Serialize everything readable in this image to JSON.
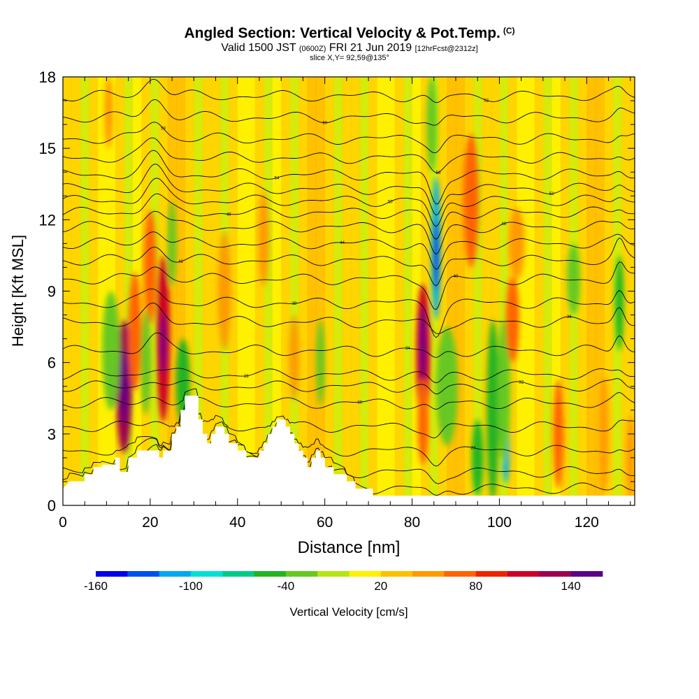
{
  "title": {
    "main": "Angled Section: Vertical Velocity & Pot.Temp.",
    "main_tag": "(C)",
    "valid_a": "Valid 1500 JST",
    "valid_b": "(0600Z)",
    "valid_c": "FRI 21 Jun 2019",
    "valid_d": "[12hrFcst@2312z]",
    "slice": "slice X,Y= 92,59@135°"
  },
  "chart_data": {
    "type": "heatmap",
    "xlabel": "Distance [nm]",
    "ylabel": "Height [Kft MSL]",
    "xlim": [
      0,
      131
    ],
    "ylim": [
      0,
      18
    ],
    "x_ticks": [
      0,
      20,
      40,
      60,
      80,
      100,
      120
    ],
    "y_ticks": [
      0,
      3,
      6,
      9,
      12,
      15,
      18
    ],
    "colorbar": {
      "label": "Vertical Velocity [cm/s]",
      "range": [
        -160,
        160
      ],
      "tick_labels": [
        -160,
        -100,
        -40,
        20,
        80,
        140
      ],
      "colors": [
        "#0000ee",
        "#0050ee",
        "#00a8f0",
        "#00e0d8",
        "#00cc88",
        "#22b422",
        "#66c822",
        "#b4e614",
        "#fff000",
        "#ffc000",
        "#ff9a00",
        "#ff6400",
        "#ee2400",
        "#cc0028",
        "#9c0050",
        "#5c0088"
      ]
    },
    "terrain_kft": [
      [
        0,
        0.7
      ],
      [
        1.5,
        1.0
      ],
      [
        5,
        1.0
      ],
      [
        5,
        1.3
      ],
      [
        7,
        1.3
      ],
      [
        7,
        1.6
      ],
      [
        9,
        1.6
      ],
      [
        9,
        1.7
      ],
      [
        12,
        1.7
      ],
      [
        12,
        2.0
      ],
      [
        13,
        2.0
      ],
      [
        13,
        1.4
      ],
      [
        15,
        1.4
      ],
      [
        15,
        2.0
      ],
      [
        17,
        2.0
      ],
      [
        17,
        2.3
      ],
      [
        19,
        2.3
      ],
      [
        19,
        2.3
      ],
      [
        22,
        2.3
      ],
      [
        22,
        2.0
      ],
      [
        23,
        2.0
      ],
      [
        23,
        2.3
      ],
      [
        25,
        2.3
      ],
      [
        25,
        3.0
      ],
      [
        26,
        3.0
      ],
      [
        26,
        3.3
      ],
      [
        27,
        3.3
      ],
      [
        27,
        4.0
      ],
      [
        28,
        4.0
      ],
      [
        28,
        4.6
      ],
      [
        31,
        4.6
      ],
      [
        31,
        3.6
      ],
      [
        32,
        3.6
      ],
      [
        32,
        3.0
      ],
      [
        33,
        3.0
      ],
      [
        33,
        2.6
      ],
      [
        34,
        2.6
      ],
      [
        34,
        3.0
      ],
      [
        35,
        3.0
      ],
      [
        35,
        3.3
      ],
      [
        37,
        3.3
      ],
      [
        37,
        3.0
      ],
      [
        38,
        3.0
      ],
      [
        38,
        2.6
      ],
      [
        40,
        2.6
      ],
      [
        40,
        2.3
      ],
      [
        42,
        2.3
      ],
      [
        42,
        2.0
      ],
      [
        45,
        2.0
      ],
      [
        45,
        2.3
      ],
      [
        46,
        2.3
      ],
      [
        46,
        2.6
      ],
      [
        47,
        2.6
      ],
      [
        47,
        3.0
      ],
      [
        48,
        3.0
      ],
      [
        48,
        3.3
      ],
      [
        49,
        3.3
      ],
      [
        49,
        3.6
      ],
      [
        51,
        3.6
      ],
      [
        51,
        3.3
      ],
      [
        52,
        3.3
      ],
      [
        52,
        3.0
      ],
      [
        53,
        3.0
      ],
      [
        53,
        2.6
      ],
      [
        54,
        2.6
      ],
      [
        54,
        2.3
      ],
      [
        55,
        2.3
      ],
      [
        55,
        2.0
      ],
      [
        56,
        2.0
      ],
      [
        56,
        1.6
      ],
      [
        57,
        1.6
      ],
      [
        57,
        2.0
      ],
      [
        58,
        2.0
      ],
      [
        58,
        2.3
      ],
      [
        59,
        2.3
      ],
      [
        59,
        2.0
      ],
      [
        60,
        2.0
      ],
      [
        60,
        1.6
      ],
      [
        62,
        1.6
      ],
      [
        62,
        1.3
      ],
      [
        65,
        1.3
      ],
      [
        65,
        1.0
      ],
      [
        67,
        1.0
      ],
      [
        67,
        0.7
      ],
      [
        71,
        0.7
      ],
      [
        71,
        0.4
      ],
      [
        131,
        0.4
      ]
    ],
    "velocity_cells": [
      {
        "x": 14,
        "y": 5.0,
        "rx": 1.8,
        "ry": 2.8,
        "v": 120
      },
      {
        "x": 14,
        "y": 5.0,
        "rx": 0.8,
        "ry": 1.6,
        "v": 150
      },
      {
        "x": 16.5,
        "y": 7.3,
        "rx": 1.5,
        "ry": 2.5,
        "v": 60
      },
      {
        "x": 23,
        "y": 7.0,
        "rx": 1.5,
        "ry": 3.5,
        "v": 110
      },
      {
        "x": 23,
        "y": 6.8,
        "rx": 0.6,
        "ry": 1.3,
        "v": 150
      },
      {
        "x": 20,
        "y": 10.0,
        "rx": 1.4,
        "ry": 2.4,
        "v": 60
      },
      {
        "x": 11,
        "y": 6.5,
        "rx": 2.0,
        "ry": 2.5,
        "v": -40
      },
      {
        "x": 19,
        "y": 6.0,
        "rx": 1.2,
        "ry": 2.2,
        "v": -40
      },
      {
        "x": 27.5,
        "y": 5.2,
        "rx": 1.6,
        "ry": 1.8,
        "v": -60
      },
      {
        "x": 25,
        "y": 11.0,
        "rx": 1.0,
        "ry": 1.8,
        "v": -40
      },
      {
        "x": 10.5,
        "y": 16.5,
        "rx": 1.0,
        "ry": 1.5,
        "v": 40
      },
      {
        "x": 53,
        "y": 6.2,
        "rx": 1.2,
        "ry": 1.8,
        "v": 40
      },
      {
        "x": 59,
        "y": 6.0,
        "rx": 1.0,
        "ry": 1.8,
        "v": -40
      },
      {
        "x": 37,
        "y": 9.0,
        "rx": 1.5,
        "ry": 2.5,
        "v": 40
      },
      {
        "x": 46,
        "y": 11.2,
        "rx": 1.2,
        "ry": 2.0,
        "v": 40
      },
      {
        "x": 82.5,
        "y": 6.3,
        "rx": 1.6,
        "ry": 3.0,
        "v": 110
      },
      {
        "x": 82.5,
        "y": 6.8,
        "rx": 0.7,
        "ry": 1.6,
        "v": 150
      },
      {
        "x": 82.5,
        "y": 3.5,
        "rx": 1.2,
        "ry": 1.8,
        "v": 60
      },
      {
        "x": 85.5,
        "y": 10.8,
        "rx": 1.0,
        "ry": 3.0,
        "v": -120
      },
      {
        "x": 85.5,
        "y": 10.5,
        "rx": 0.5,
        "ry": 1.5,
        "v": -160
      },
      {
        "x": 84.5,
        "y": 16.0,
        "rx": 1.2,
        "ry": 2.0,
        "v": -40
      },
      {
        "x": 88,
        "y": 5.0,
        "rx": 2.5,
        "ry": 2.5,
        "v": -40
      },
      {
        "x": 93.5,
        "y": 12.8,
        "rx": 1.8,
        "ry": 2.8,
        "v": 60
      },
      {
        "x": 98.5,
        "y": 4.0,
        "rx": 1.4,
        "ry": 3.8,
        "v": -60
      },
      {
        "x": 95,
        "y": 2.0,
        "rx": 1.3,
        "ry": 1.6,
        "v": -60
      },
      {
        "x": 101.5,
        "y": 2.6,
        "rx": 0.8,
        "ry": 1.7,
        "v": -120
      },
      {
        "x": 101,
        "y": 4.8,
        "rx": 1.5,
        "ry": 3.0,
        "v": -40
      },
      {
        "x": 103,
        "y": 7.8,
        "rx": 1.5,
        "ry": 1.8,
        "v": 60
      },
      {
        "x": 104,
        "y": 11.0,
        "rx": 1.8,
        "ry": 1.5,
        "v": 40
      },
      {
        "x": 113.5,
        "y": 3.0,
        "rx": 1.2,
        "ry": 2.3,
        "v": 60
      },
      {
        "x": 117,
        "y": 9.5,
        "rx": 1.5,
        "ry": 1.5,
        "v": -40
      },
      {
        "x": 124,
        "y": 3.0,
        "rx": 1.0,
        "ry": 2.5,
        "v": 40
      },
      {
        "x": 127.5,
        "y": 8.5,
        "rx": 1.0,
        "ry": 2.0,
        "v": -60
      },
      {
        "x": 130,
        "y": 2.0,
        "rx": 1.0,
        "ry": 1.8,
        "v": 40
      }
    ],
    "theta_levels": [
      {
        "base": 0.5,
        "label": "16"
      },
      {
        "base": 1.4,
        "label": "20"
      },
      {
        "base": 2.3,
        "label": "24"
      },
      {
        "base": 3.3,
        "label": "28"
      },
      {
        "base": 4.3,
        "label": "30"
      },
      {
        "base": 5.0,
        "label": "32"
      },
      {
        "base": 5.5,
        "label": "33"
      },
      {
        "base": 6.5,
        "label": "34"
      },
      {
        "base": 7.7,
        "label": "36"
      },
      {
        "base": 8.5,
        "label": "38"
      },
      {
        "base": 9.5,
        "label": "40"
      },
      {
        "base": 10.3,
        "label": "42"
      },
      {
        "base": 11.0,
        "label": "44"
      },
      {
        "base": 11.7,
        "label": "46"
      },
      {
        "base": 12.3,
        "label": "48"
      },
      {
        "base": 12.8,
        "label": "50"
      },
      {
        "base": 13.3,
        "label": "52"
      },
      {
        "base": 13.9,
        "label": "54"
      },
      {
        "base": 14.6,
        "label": "56"
      },
      {
        "base": 15.4,
        "label": "58"
      },
      {
        "base": 16.3,
        "label": "60"
      },
      {
        "base": 17.2,
        "label": "62"
      }
    ]
  }
}
